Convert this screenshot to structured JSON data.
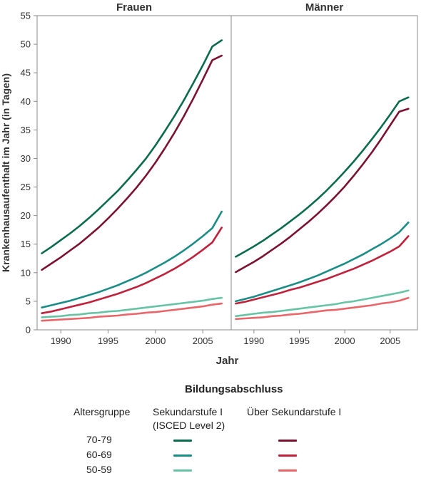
{
  "chart_data": {
    "type": "line",
    "ylabel": "Krankenhausaufenthalt im Jahr (in Tagen)",
    "xlabel": "Jahr",
    "ylim": [
      0,
      55
    ],
    "yticks": [
      0,
      5,
      10,
      15,
      20,
      25,
      30,
      35,
      40,
      45,
      50,
      55
    ],
    "xlim": [
      1987.5,
      2008
    ],
    "xticks": [
      1990,
      1995,
      2000,
      2005
    ],
    "grid": false,
    "x": [
      1988,
      1989,
      1990,
      1991,
      1992,
      1993,
      1994,
      1995,
      1996,
      1997,
      1998,
      1999,
      2000,
      2001,
      2002,
      2003,
      2004,
      2005,
      2006,
      2007
    ],
    "panels": [
      {
        "title": "Frauen",
        "series": [
          {
            "key": "sek_70_79",
            "color": "#0b6b4f",
            "values": [
              13.4,
              14.5,
              15.7,
              16.9,
              18.2,
              19.6,
              21.1,
              22.7,
              24.3,
              26.1,
              28.0,
              30.0,
              32.3,
              34.8,
              37.4,
              40.2,
              43.2,
              46.3,
              49.6,
              50.7
            ]
          },
          {
            "key": "ueb_70_79",
            "color": "#7a1230",
            "values": [
              10.5,
              11.6,
              12.7,
              13.9,
              15.1,
              16.5,
              17.9,
              19.5,
              21.2,
              23.0,
              24.9,
              27.0,
              29.3,
              31.8,
              34.5,
              37.4,
              40.5,
              43.8,
              47.2,
              48.0
            ]
          },
          {
            "key": "sek_60_69",
            "color": "#1b8d86",
            "values": [
              3.9,
              4.3,
              4.7,
              5.1,
              5.6,
              6.1,
              6.6,
              7.2,
              7.8,
              8.5,
              9.2,
              10.0,
              10.9,
              11.8,
              12.8,
              13.9,
              15.1,
              16.4,
              17.8,
              20.7
            ]
          },
          {
            "key": "ueb_60_69",
            "color": "#c0213b",
            "values": [
              2.9,
              3.2,
              3.6,
              4.0,
              4.4,
              4.8,
              5.3,
              5.8,
              6.3,
              6.9,
              7.5,
              8.2,
              9.0,
              9.8,
              10.7,
              11.7,
              12.8,
              14.0,
              15.3,
              17.9
            ]
          },
          {
            "key": "sek_50_59",
            "color": "#66c4a4",
            "values": [
              2.2,
              2.3,
              2.4,
              2.6,
              2.7,
              2.9,
              3.0,
              3.2,
              3.3,
              3.5,
              3.7,
              3.9,
              4.1,
              4.3,
              4.5,
              4.7,
              4.9,
              5.1,
              5.4,
              5.6
            ]
          },
          {
            "key": "ueb_50_59",
            "color": "#e8656a",
            "values": [
              1.6,
              1.7,
              1.8,
              1.9,
              2.0,
              2.1,
              2.3,
              2.4,
              2.5,
              2.7,
              2.8,
              3.0,
              3.1,
              3.3,
              3.5,
              3.7,
              3.9,
              4.1,
              4.4,
              4.6
            ]
          }
        ]
      },
      {
        "title": "Männer",
        "series": [
          {
            "key": "sek_70_79",
            "color": "#0b6b4f",
            "values": [
              12.8,
              13.7,
              14.6,
              15.6,
              16.7,
              17.8,
              19.0,
              20.2,
              21.5,
              22.9,
              24.4,
              26.0,
              27.7,
              29.5,
              31.4,
              33.4,
              35.5,
              37.7,
              40.0,
              40.7
            ]
          },
          {
            "key": "ueb_70_79",
            "color": "#7a1230",
            "values": [
              10.1,
              11.0,
              11.9,
              12.9,
              14.0,
              15.1,
              16.3,
              17.6,
              18.9,
              20.3,
              21.8,
              23.4,
              25.1,
              27.0,
              29.0,
              31.1,
              33.4,
              35.8,
              38.2,
              38.7
            ]
          },
          {
            "key": "sek_60_69",
            "color": "#1b8d86",
            "values": [
              5.0,
              5.4,
              5.8,
              6.3,
              6.8,
              7.3,
              7.8,
              8.3,
              8.9,
              9.5,
              10.2,
              10.9,
              11.6,
              12.4,
              13.2,
              14.1,
              15.0,
              16.0,
              17.1,
              18.8
            ]
          },
          {
            "key": "ueb_60_69",
            "color": "#c0213b",
            "values": [
              4.6,
              4.9,
              5.3,
              5.7,
              6.1,
              6.5,
              7.0,
              7.4,
              7.9,
              8.4,
              8.9,
              9.5,
              10.1,
              10.7,
              11.4,
              12.1,
              12.9,
              13.7,
              14.6,
              16.4
            ]
          },
          {
            "key": "sek_50_59",
            "color": "#66c4a4",
            "values": [
              2.4,
              2.6,
              2.8,
              3.0,
              3.1,
              3.3,
              3.5,
              3.7,
              3.9,
              4.1,
              4.3,
              4.5,
              4.8,
              5.0,
              5.3,
              5.6,
              5.9,
              6.2,
              6.5,
              6.9
            ]
          },
          {
            "key": "ueb_50_59",
            "color": "#e8656a",
            "values": [
              1.9,
              2.0,
              2.1,
              2.2,
              2.4,
              2.5,
              2.7,
              2.8,
              3.0,
              3.2,
              3.4,
              3.5,
              3.7,
              3.9,
              4.1,
              4.3,
              4.6,
              4.8,
              5.1,
              5.6
            ]
          }
        ]
      }
    ]
  },
  "legend": {
    "title": "Bildungsabschluss",
    "col_age": "Altersgruppe",
    "col_sek_line1": "Sekundarstufe I",
    "col_sek_line2": "(ISCED Level 2)",
    "col_ueb": "Über Sekundarstufe I",
    "rows": [
      {
        "age": "70-79",
        "sek_color": "#0b6b4f",
        "ueb_color": "#7a1230"
      },
      {
        "age": "60-69",
        "sek_color": "#1b8d86",
        "ueb_color": "#c0213b"
      },
      {
        "age": "50-59",
        "sek_color": "#66c4a4",
        "ueb_color": "#e8656a"
      }
    ]
  }
}
